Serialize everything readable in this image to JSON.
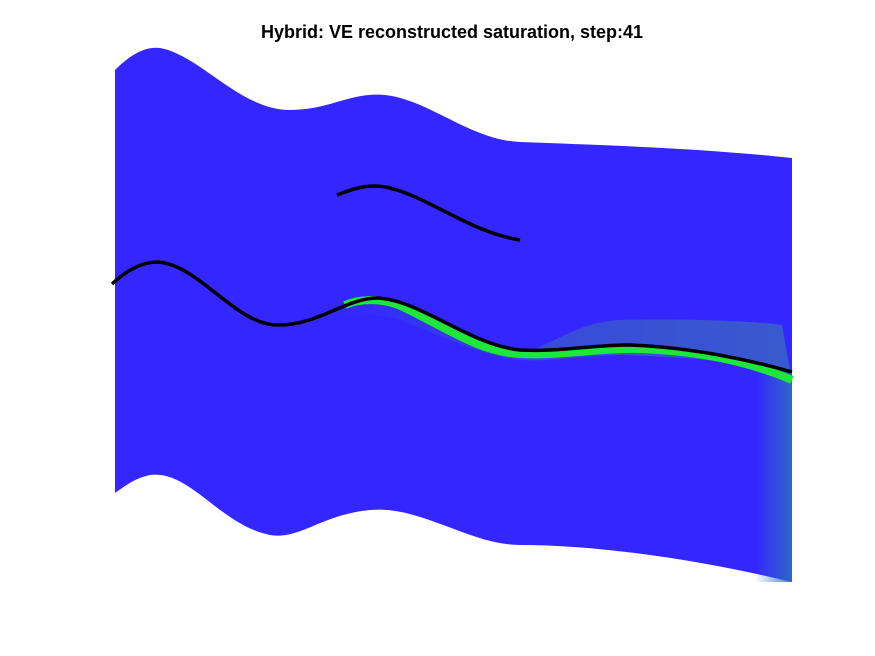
{
  "header": {
    "title": "Hybrid: VE reconstructed saturation, step:41"
  }
}
